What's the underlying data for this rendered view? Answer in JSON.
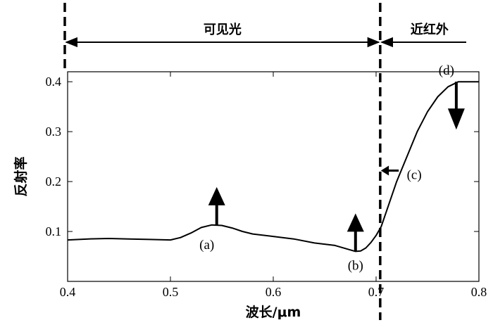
{
  "chart_data": {
    "type": "line",
    "title": "",
    "xlabel": "波长/μm",
    "ylabel": "反射率",
    "xlim": [
      0.4,
      0.8
    ],
    "ylim": [
      0.0,
      0.42
    ],
    "xticks": [
      0.4,
      0.5,
      0.6,
      0.7,
      0.8
    ],
    "xtick_labels": [
      "0.4",
      "0.5",
      "0.6",
      "0.7",
      "0.8"
    ],
    "yticks": [
      0.1,
      0.2,
      0.3,
      0.4
    ],
    "ytick_labels": [
      "0.1",
      "0.2",
      "0.3",
      "0.4"
    ],
    "grid": false,
    "series": [
      {
        "x": [
          0.4,
          0.42,
          0.44,
          0.46,
          0.48,
          0.5,
          0.51,
          0.52,
          0.53,
          0.54,
          0.55,
          0.56,
          0.57,
          0.58,
          0.6,
          0.62,
          0.64,
          0.66,
          0.67,
          0.68,
          0.685,
          0.69,
          0.695,
          0.7,
          0.705,
          0.71,
          0.72,
          0.73,
          0.74,
          0.75,
          0.76,
          0.77,
          0.78,
          0.8
        ],
        "y": [
          0.083,
          0.085,
          0.086,
          0.085,
          0.084,
          0.083,
          0.088,
          0.097,
          0.108,
          0.113,
          0.112,
          0.107,
          0.1,
          0.095,
          0.09,
          0.085,
          0.077,
          0.072,
          0.066,
          0.06,
          0.061,
          0.067,
          0.078,
          0.092,
          0.11,
          0.14,
          0.2,
          0.25,
          0.3,
          0.34,
          0.37,
          0.39,
          0.4,
          0.4
        ]
      }
    ],
    "regions": [
      {
        "label": "可见光",
        "from": 0.4,
        "to": 0.704
      },
      {
        "label": "近红外",
        "from": 0.704,
        "to": 0.8
      }
    ],
    "divider_x": 0.704,
    "annotations": [
      {
        "label": "(a)",
        "x": 0.545,
        "y": 0.113,
        "arrow": "up"
      },
      {
        "label": "(b)",
        "x": 0.68,
        "y": 0.06,
        "arrow": "up"
      },
      {
        "label": "(c)",
        "x": 0.722,
        "y": 0.222,
        "arrow": "left"
      },
      {
        "label": "(d)",
        "x": 0.778,
        "y": 0.4,
        "arrow": "down"
      }
    ]
  }
}
